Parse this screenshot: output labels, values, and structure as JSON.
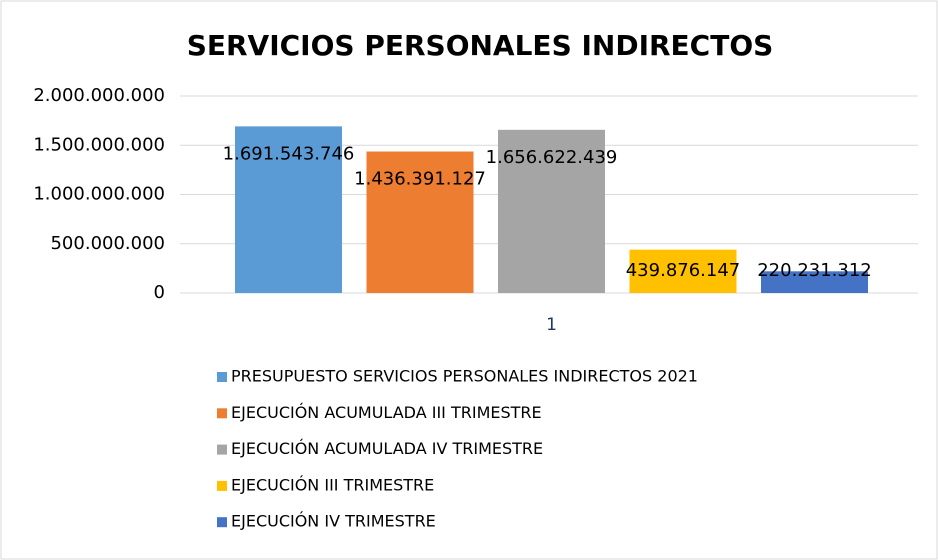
{
  "chart_data": {
    "type": "bar",
    "title": "SERVICIOS PERSONALES INDIRECTOS",
    "categories": [
      "1"
    ],
    "series": [
      {
        "name": "PRESUPUESTO SERVICIOS PERSONALES INDIRECTOS 2021",
        "color": "#5b9bd5",
        "values": [
          1691543746
        ],
        "value_labels": [
          "1.691.543.746"
        ]
      },
      {
        "name": "EJECUCIÓN ACUMULADA III TRIMESTRE",
        "color": "#ed7d31",
        "values": [
          1436391127
        ],
        "value_labels": [
          "1.436.391.127"
        ]
      },
      {
        "name": "EJECUCIÓN ACUMULADA IV TRIMESTRE",
        "color": "#a5a5a5",
        "values": [
          1656622439
        ],
        "value_labels": [
          "1.656.622.439"
        ]
      },
      {
        "name": "EJECUCIÓN III TRIMESTRE",
        "color": "#ffc000",
        "values": [
          439876147
        ],
        "value_labels": [
          "439.876.147"
        ]
      },
      {
        "name": "EJECUCIÓN IV TRIMESTRE",
        "color": "#4472c4",
        "values": [
          220231312
        ],
        "value_labels": [
          "220.231.312"
        ]
      }
    ],
    "ylim": [
      0,
      2000000000
    ],
    "yticks": [
      0,
      {
        "value": 500000000,
        "label": "500.000.000"
      },
      {
        "value": 1000000000,
        "label": "1.000.000.000"
      },
      {
        "value": 1500000000,
        "label": "1.500.000.000"
      },
      {
        "value": 2000000000,
        "label": "2.000.000.000"
      }
    ],
    "grid": true,
    "legend": "bottom"
  }
}
